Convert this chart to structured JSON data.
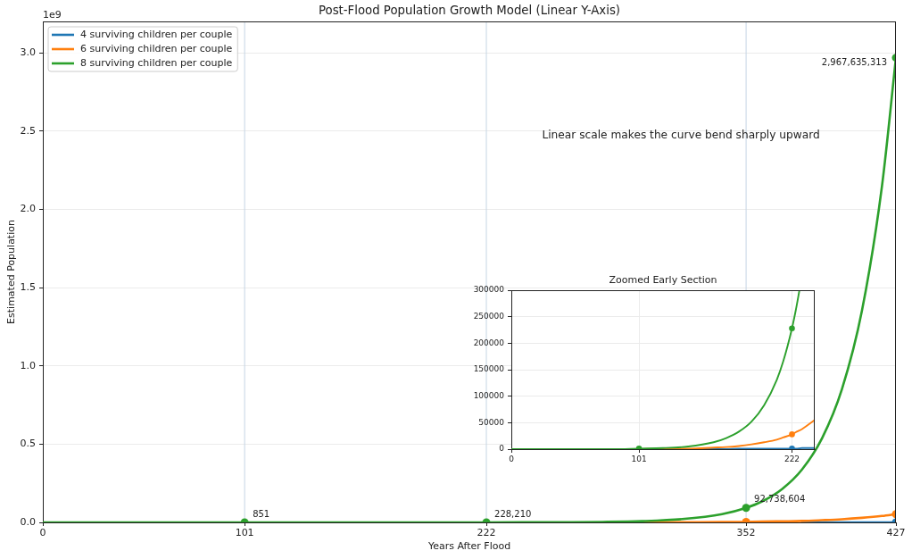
{
  "chart_data": [
    {
      "type": "line",
      "title": "Post-Flood Population Growth Model (Linear Y-Axis)",
      "xlabel": "Years After Flood",
      "ylabel": "Estimated Population",
      "x": [
        0,
        30,
        60,
        90,
        120,
        150,
        180,
        200,
        222,
        240,
        260,
        280,
        300,
        320,
        340,
        352,
        360,
        370,
        380,
        390,
        400,
        410,
        420,
        427
      ],
      "xlim": [
        0,
        427
      ],
      "xticks": [
        0,
        101,
        222,
        352,
        427
      ],
      "ylim": [
        0,
        3.2
      ],
      "yticks": [
        {
          "value": 0,
          "label": "0.0"
        },
        0.5,
        {
          "value": 1,
          "label": "1.0"
        },
        1.5,
        {
          "value": 2,
          "label": "2.0"
        },
        2.5,
        {
          "value": 3,
          "label": "3.0"
        }
      ],
      "grid": "y",
      "legend": "top left",
      "ref_lines": [
        {
          "axis": "x",
          "value": 101,
          "color": "#c5d5e4"
        },
        {
          "axis": "x",
          "value": 222,
          "color": "#c5d5e4"
        },
        {
          "axis": "x",
          "value": 352,
          "color": "#c5d5e4"
        }
      ],
      "annotations": [
        "1e9",
        "Linear scale makes the curve bend sharply upward",
        {
          "text": "851",
          "x": 101,
          "y": 0
        },
        {
          "text": "228,210",
          "x": 222,
          "y": 0
        },
        {
          "text": "92,738,604",
          "x": 352,
          "y": 0.093
        },
        {
          "text": "2,967,635,313",
          "x": 427,
          "y": 2.968
        }
      ],
      "series": [
        {
          "name": "4 surviving children per couple",
          "color": "#1f77b4",
          "values": [
            null,
            null,
            null,
            null,
            null,
            null,
            null,
            null,
            null,
            null,
            null,
            null,
            null,
            null,
            null,
            null,
            null,
            null,
            0,
            0,
            0,
            0,
            0,
            0
          ]
        },
        {
          "name": "6 surviving children per couple",
          "color": "#ff7f0e",
          "values": [
            null,
            null,
            null,
            null,
            null,
            null,
            null,
            null,
            null,
            null,
            null,
            null,
            0,
            0.001,
            0.002,
            0.003,
            0.005,
            0.007,
            0.009,
            0.014,
            0.02,
            0.029,
            0.041,
            0.053
          ]
        },
        {
          "name": "8 surviving children per couple",
          "color": "#2ca02c",
          "values": [
            0,
            0,
            0,
            0,
            0,
            0,
            0,
            0,
            0,
            0.001,
            0.001,
            0.003,
            0.008,
            0.021,
            0.053,
            0.093,
            0.134,
            0.213,
            0.338,
            0.537,
            0.852,
            1.353,
            2.147,
            2.968
          ]
        },
        {
          "type": "scatter",
          "color": "#1f77b4",
          "marker": "circle",
          "x": [
            427
          ],
          "values": [
            0
          ]
        },
        {
          "type": "scatter",
          "color": "#ff7f0e",
          "marker": "circle",
          "x": [
            352,
            427
          ],
          "values": [
            0.003,
            0.053
          ]
        },
        {
          "type": "scatter",
          "color": "#2ca02c",
          "marker": "circle",
          "x": [
            101,
            222,
            352,
            427
          ],
          "values": [
            0,
            0,
            0.093,
            2.968
          ]
        }
      ]
    },
    {
      "type": "line",
      "title": "Zoomed Early Section",
      "xlim": [
        0,
        240
      ],
      "xticks": [
        0,
        101,
        222
      ],
      "ylim": [
        0,
        300000
      ],
      "yticks": [
        0,
        50000,
        100000,
        150000,
        200000,
        250000,
        300000
      ],
      "grid": true,
      "series": [
        {
          "color": "#1f77b4",
          "x": [
            140,
            160,
            170,
            180,
            190,
            200,
            210,
            215,
            222,
            225,
            230,
            240
          ],
          "values": [
            0,
            0,
            0,
            1000,
            1000,
            1000,
            1000,
            1000,
            1000,
            1000,
            2000,
            2000
          ]
        },
        {
          "color": "#ff7f0e",
          "x": [
            101,
            120,
            140,
            160,
            170,
            180,
            190,
            200,
            210,
            215,
            222,
            225,
            230,
            240
          ],
          "values": [
            0,
            1000,
            1000,
            3000,
            4000,
            6000,
            9000,
            13000,
            18000,
            22000,
            28000,
            32000,
            38000,
            55000
          ]
        },
        {
          "color": "#2ca02c",
          "x": [
            0,
            20,
            40,
            60,
            80,
            101,
            120,
            140,
            160,
            170,
            180,
            190,
            200,
            210,
            215,
            222,
            225,
            227.9
          ],
          "values": [
            0,
            0,
            0,
            0,
            0,
            1000,
            2000,
            5000,
            13000,
            21000,
            33000,
            52000,
            83000,
            131000,
            165000,
            228000,
            262000,
            300000
          ]
        },
        {
          "type": "scatter",
          "color": "#1f77b4",
          "marker": "circle",
          "x": [
            222
          ],
          "values": [
            1000
          ]
        },
        {
          "type": "scatter",
          "color": "#ff7f0e",
          "marker": "circle",
          "x": [
            222
          ],
          "values": [
            28000
          ]
        },
        {
          "type": "scatter",
          "color": "#2ca02c",
          "marker": "circle",
          "x": [
            101,
            222
          ],
          "values": [
            1000,
            228000
          ]
        }
      ]
    }
  ]
}
